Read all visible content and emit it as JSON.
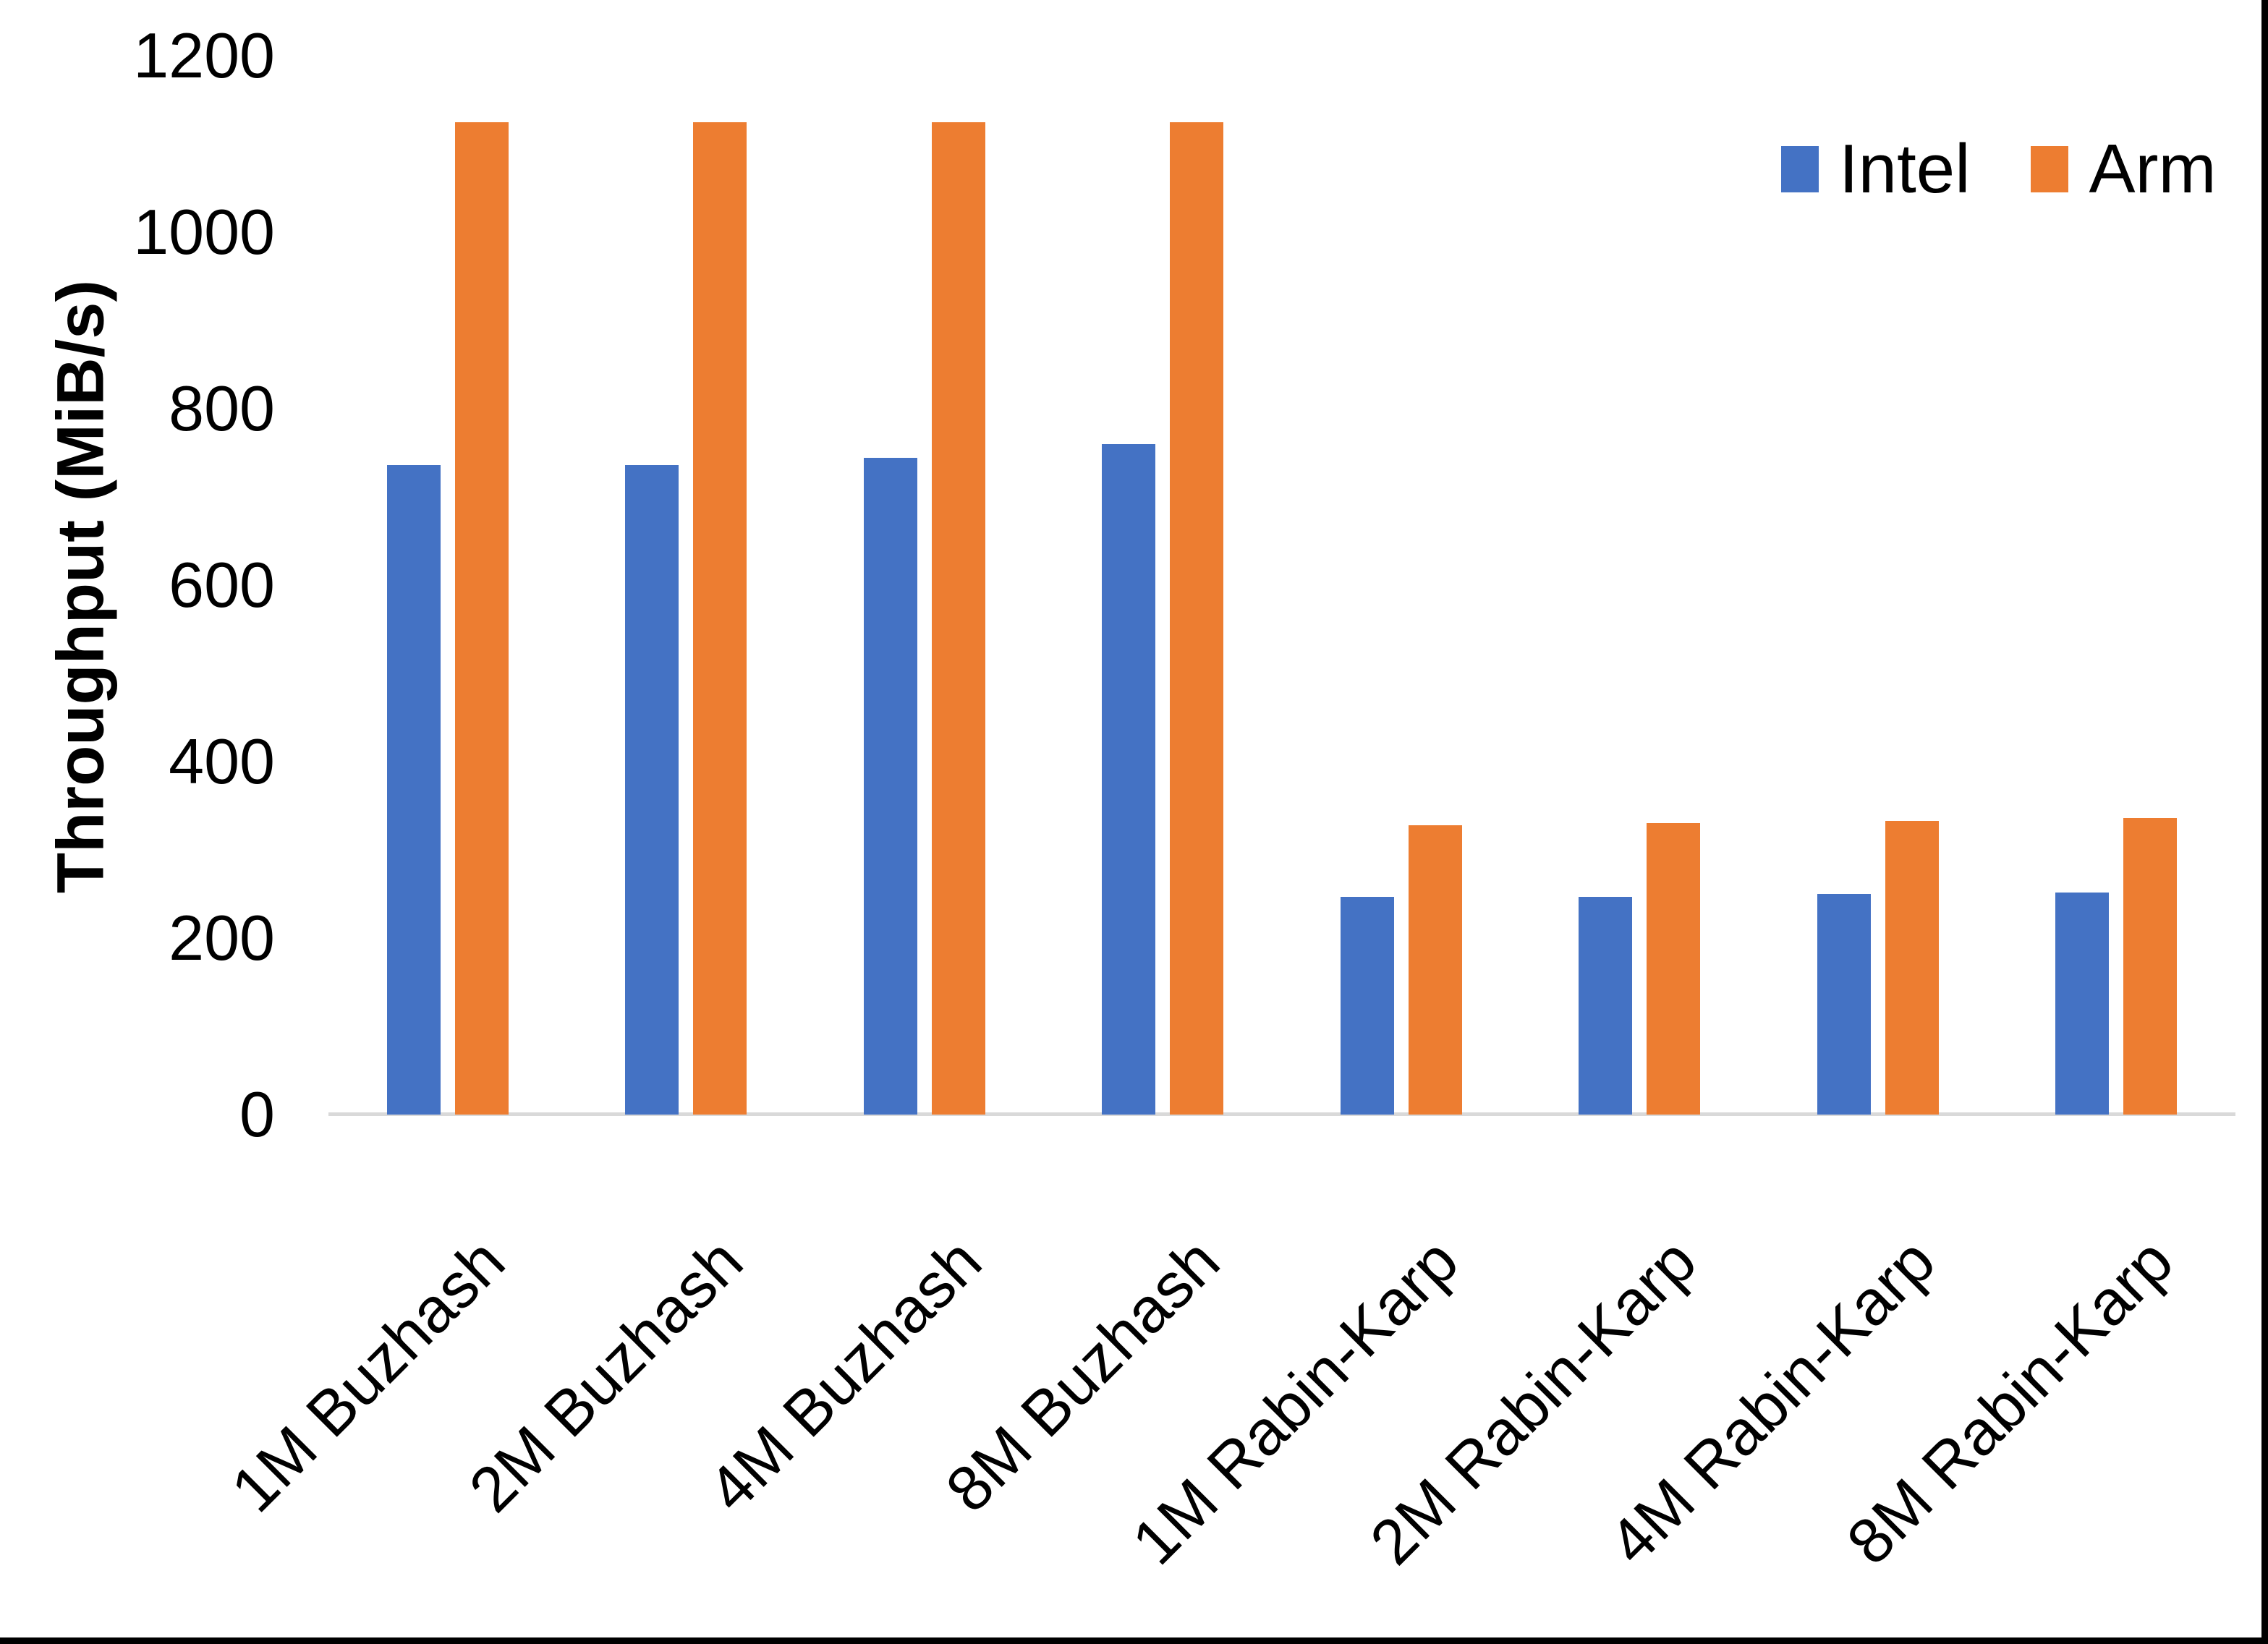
{
  "chart_data": {
    "type": "bar",
    "title": "",
    "xlabel": "",
    "ylabel": "Throughput (MiB/s)",
    "ylim": [
      0,
      1200
    ],
    "y_ticks": [
      0,
      200,
      400,
      600,
      800,
      1000,
      1200
    ],
    "grid": false,
    "legend_position": "top-right",
    "axis_line_color": "#D9D9D9",
    "categories": [
      "1M Buzhash",
      "2M Buzhash",
      "4M Buzhash",
      "8M Buzhash",
      "1M Rabin-Karp",
      "2M Rabin-Karp",
      "4M Rabin-Karp",
      "8M Rabin-Karp"
    ],
    "series": [
      {
        "name": "Intel",
        "color": "#4472C4",
        "values": [
          736,
          736,
          744,
          760,
          247,
          247,
          250,
          252
        ]
      },
      {
        "name": "Arm",
        "color": "#ED7D31",
        "values": [
          1125,
          1125,
          1125,
          1125,
          328,
          330,
          333,
          336
        ]
      }
    ]
  },
  "frame": {
    "border_color": "#000000"
  }
}
